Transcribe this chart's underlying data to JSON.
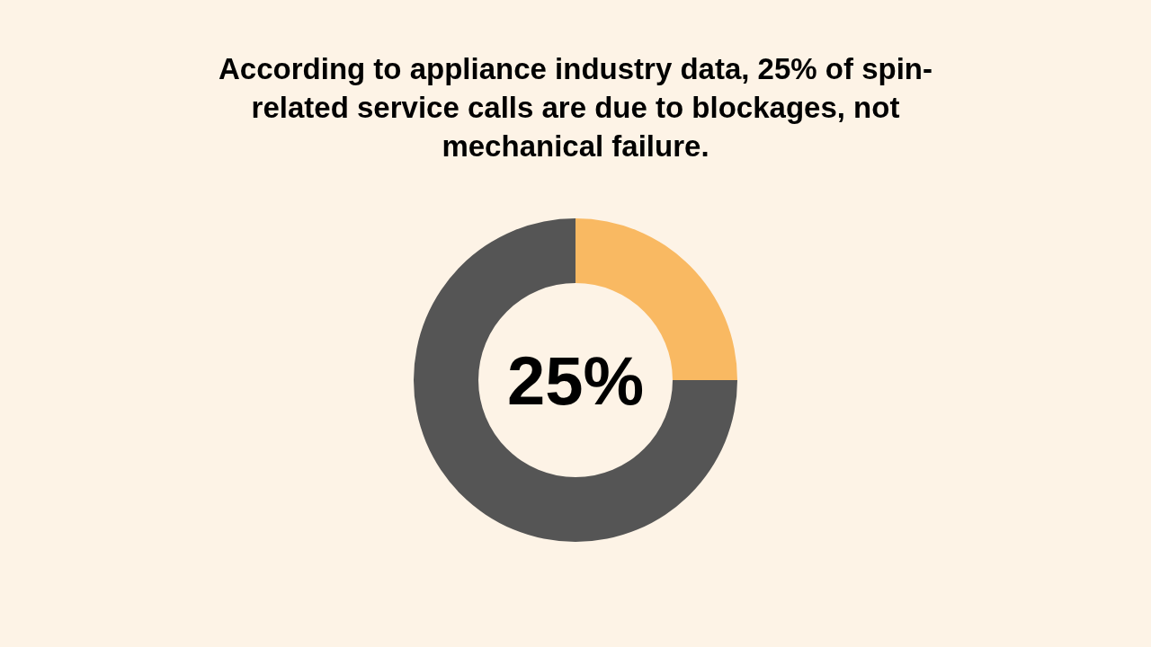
{
  "chart_data": {
    "type": "donut",
    "title": "According to appliance industry data, 25% of spin-related service calls are due to blockages, not mechanical failure.",
    "categories": [
      null,
      null
    ],
    "values": [
      25,
      75
    ],
    "colors": [
      "#f9b962",
      "#555555"
    ],
    "annotations": [
      "25%"
    ]
  }
}
